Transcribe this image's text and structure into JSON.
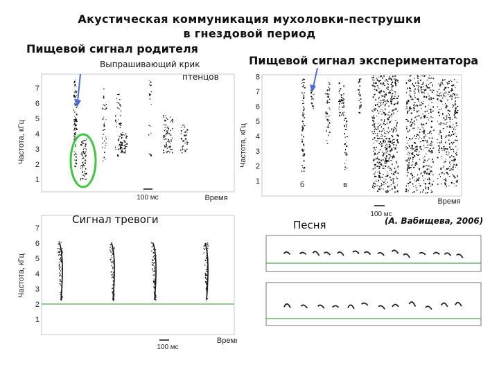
{
  "title": {
    "line1": "Акустическая коммуникация мухоловки-пеструшки",
    "line2": "в гнездовой период"
  },
  "labels": {
    "parent_food_signal": "Пищевой сигнал родителя",
    "begging_call": "Выпрашивающий крик",
    "begging_call_2": "птенцов",
    "experimenter_food_signal": "Пищевой сигнал экспериментатора",
    "alarm_signal": "Сигнал тревоги",
    "song": "Песня",
    "credit": "(А. Вабищева, 2006)"
  },
  "axes": {
    "ylabel": "Частота, кГц",
    "xlabel": "Время",
    "scale_bar": "100 мс"
  },
  "panel_marks": {
    "b": "б",
    "v": "в"
  },
  "panels": {
    "parent": {
      "yticks": [
        "1",
        "2",
        "3",
        "4",
        "5",
        "6",
        "7"
      ]
    },
    "experimenter": {
      "yticks": [
        "1",
        "2",
        "3",
        "4",
        "5",
        "6",
        "7",
        "8"
      ]
    },
    "alarm": {
      "yticks": [
        "1",
        "2",
        "3",
        "4",
        "5",
        "6",
        "7"
      ]
    }
  },
  "colors": {
    "arrow": "#4a6bd8",
    "ellipse": "#3cc83c",
    "baseline": "#2e8b2e",
    "ink": "#111111",
    "frame": "#bbbbbb"
  }
}
